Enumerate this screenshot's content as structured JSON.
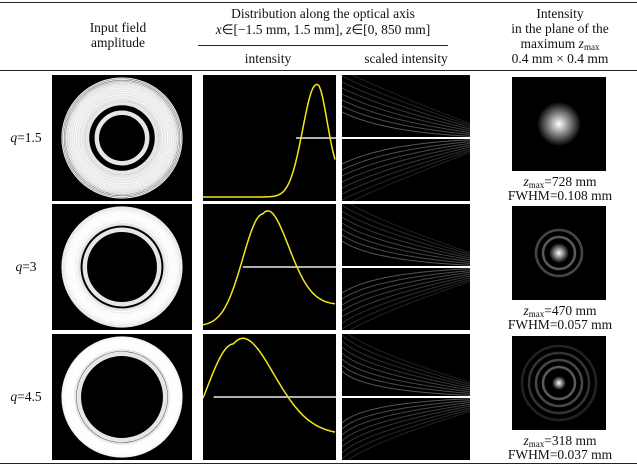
{
  "header": {
    "input_title": [
      "Input field",
      "amplitude"
    ],
    "distribution_title": "Distribution along the optical axis",
    "range_parts": [
      "x",
      "∈[−1.5 mm, 1.5 mm], ",
      "z",
      "∈[0, 850 mm]"
    ],
    "intensity": "intensity",
    "scaled_intensity": "scaled intensity",
    "plane_title": [
      "Intensity",
      "in the plane of the",
      "maximum "
    ],
    "zmax_symbol": "z",
    "zmax_sub": "max",
    "size": "0.4 mm × 0.4 mm"
  },
  "rows": [
    {
      "q_symbol": "q",
      "q_value": "=1.5",
      "z_symbol": "z",
      "z_sub": "max",
      "z_value": "=728 mm",
      "fwhm": "FWHM=0.108 mm"
    },
    {
      "q_symbol": "q",
      "q_value": "=3",
      "z_symbol": "z",
      "z_sub": "max",
      "z_value": "=470 mm",
      "fwhm": "FWHM=0.057 mm"
    },
    {
      "q_symbol": "q",
      "q_value": "=4.5",
      "z_symbol": "z",
      "z_sub": "max",
      "z_value": "=318 mm",
      "fwhm": "FWHM=0.037 mm"
    }
  ]
}
